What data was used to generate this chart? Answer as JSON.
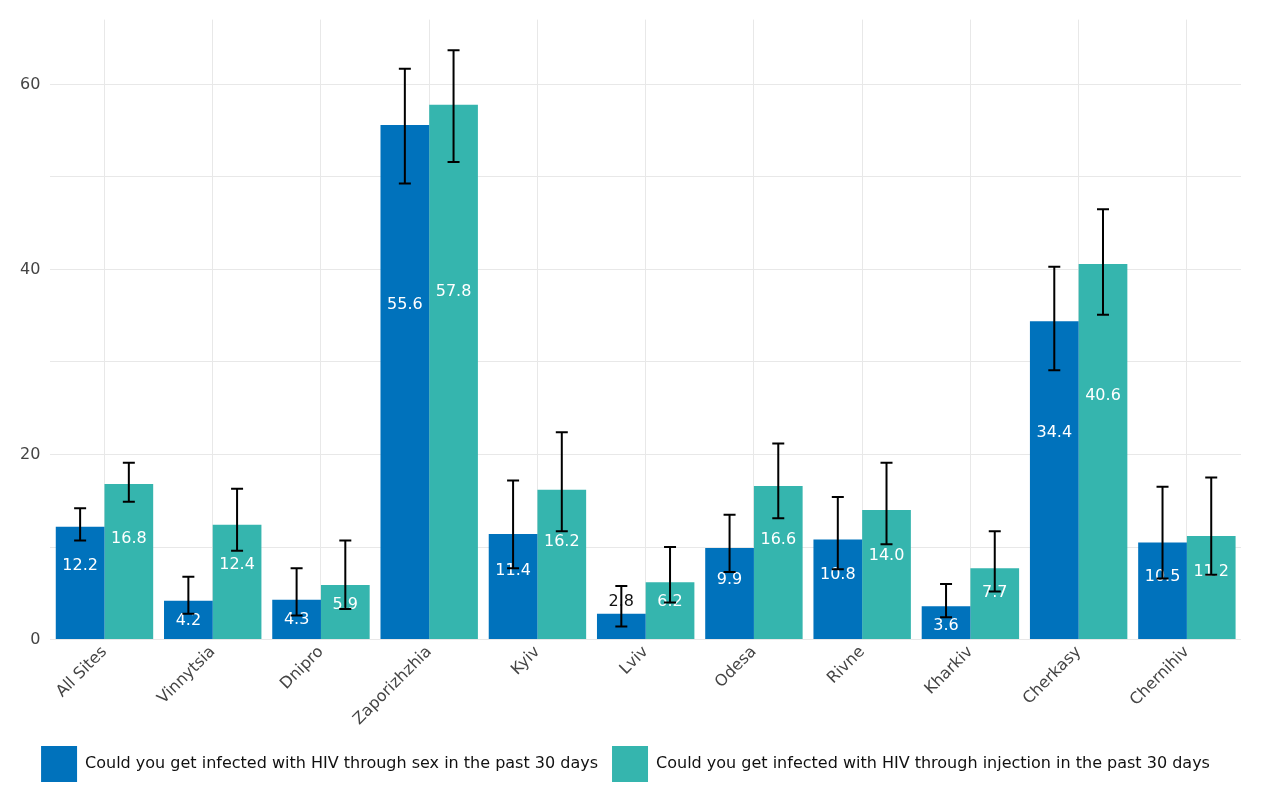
{
  "chart_data": {
    "type": "bar",
    "categories": [
      "All Sites",
      "Vinnytsia",
      "Dnipro",
      "Zaporizhzhia",
      "Kyiv",
      "Lviv",
      "Odesa",
      "Rivne",
      "Kharkiv",
      "Cherkasy",
      "Chernihiv"
    ],
    "series": [
      {
        "name": "Could you get infected with HIV through sex in the past 30 days",
        "color": "#0072bc",
        "values": [
          12.2,
          4.2,
          4.3,
          55.6,
          11.4,
          2.8,
          9.9,
          10.8,
          3.6,
          34.4,
          10.5
        ],
        "value_labels": [
          "12.2",
          "4.2",
          "4.3",
          "55.6",
          "11.4",
          "2.8",
          "9.9",
          "10.8",
          "3.6",
          "34.4",
          "10.5"
        ],
        "errors": [
          [
            10.7,
            14.2
          ],
          [
            2.8,
            6.8
          ],
          [
            2.6,
            7.7
          ],
          [
            49.3,
            61.7
          ],
          [
            7.7,
            17.2
          ],
          [
            1.4,
            5.8
          ],
          [
            7.3,
            13.5
          ],
          [
            7.6,
            15.4
          ],
          [
            2.4,
            6.0
          ],
          [
            29.1,
            40.3
          ],
          [
            6.6,
            16.5
          ]
        ]
      },
      {
        "name": "Could you get infected with HIV through injection in the past 30 days",
        "color": "#35b5ae",
        "values": [
          16.8,
          12.4,
          5.9,
          57.8,
          16.2,
          6.2,
          16.6,
          14.0,
          7.7,
          40.6,
          11.2
        ],
        "value_labels": [
          "16.8",
          "12.4",
          "5.9",
          "57.8",
          "16.2",
          "6.2",
          "16.6",
          "14.0",
          "7.7",
          "40.6",
          "11.2"
        ],
        "errors": [
          [
            14.9,
            19.1
          ],
          [
            9.6,
            16.3
          ],
          [
            3.3,
            10.7
          ],
          [
            51.6,
            63.7
          ],
          [
            11.7,
            22.4
          ],
          [
            4.0,
            10.0
          ],
          [
            13.1,
            21.2
          ],
          [
            10.3,
            19.1
          ],
          [
            5.2,
            11.7
          ],
          [
            35.1,
            46.5
          ],
          [
            7.0,
            17.5
          ]
        ]
      }
    ],
    "ylim": [
      0,
      67
    ],
    "yticks": [
      0,
      {
        "value": 10,
        "label": null
      },
      20,
      {
        "value": 30,
        "label": null
      },
      40,
      {
        "value": 50,
        "label": null
      },
      60
    ],
    "grid": true,
    "legend": "bottom"
  }
}
